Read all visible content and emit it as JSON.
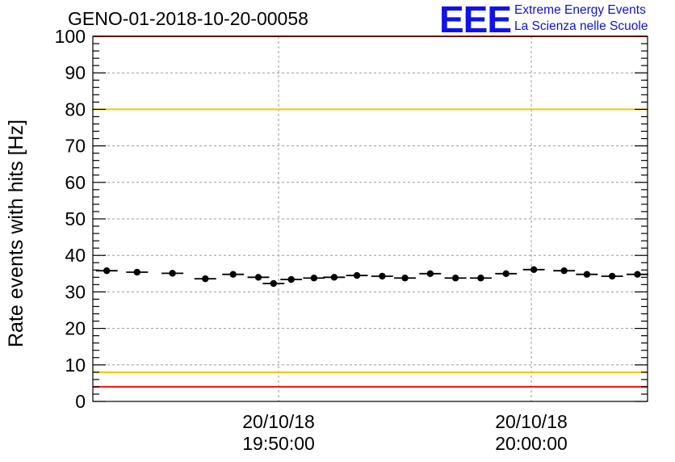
{
  "title": "GENO-01-2018-10-20-00058",
  "logo": {
    "mark": "EEE",
    "line1": "Extreme Energy Events",
    "line2": "La Scienza nelle Scuole"
  },
  "chart_data": {
    "type": "scatter",
    "title": "GENO-01-2018-10-20-00058",
    "ylabel": "Rate events with hits [Hz]",
    "xlabel": "",
    "ylim": [
      0,
      100
    ],
    "yticks": [
      0,
      10,
      20,
      30,
      40,
      50,
      60,
      70,
      80,
      90,
      100
    ],
    "x_unit": "minutes",
    "xlim": [
      11.45,
      33.4
    ],
    "xtick_labels": [
      {
        "x": 18.8,
        "date": "20/10/18",
        "time": "19:50:00"
      },
      {
        "x": 28.8,
        "date": "20/10/18",
        "time": "20:00:00"
      }
    ],
    "grid": true,
    "error_bar_half_width": 0.43,
    "x": [
      12.0,
      13.2,
      14.6,
      15.9,
      17.0,
      18.0,
      18.6,
      19.3,
      20.2,
      21.0,
      21.9,
      22.9,
      23.8,
      24.8,
      25.8,
      26.8,
      27.8,
      28.9,
      30.1,
      31.0,
      32.0,
      33.0
    ],
    "values": [
      35.8,
      35.4,
      35.1,
      33.6,
      34.8,
      34.0,
      32.3,
      33.4,
      33.8,
      34.0,
      34.5,
      34.3,
      33.8,
      35.0,
      33.8,
      33.8,
      35.0,
      36.1,
      35.8,
      34.8,
      34.3,
      34.8
    ],
    "reference_lines": [
      {
        "y": 100,
        "color": "#ee1111"
      },
      {
        "y": 80,
        "color": "#f0c800"
      },
      {
        "y": 8,
        "color": "#f0c800"
      },
      {
        "y": 4,
        "color": "#ee1111"
      }
    ],
    "marker_color": "#000000"
  }
}
